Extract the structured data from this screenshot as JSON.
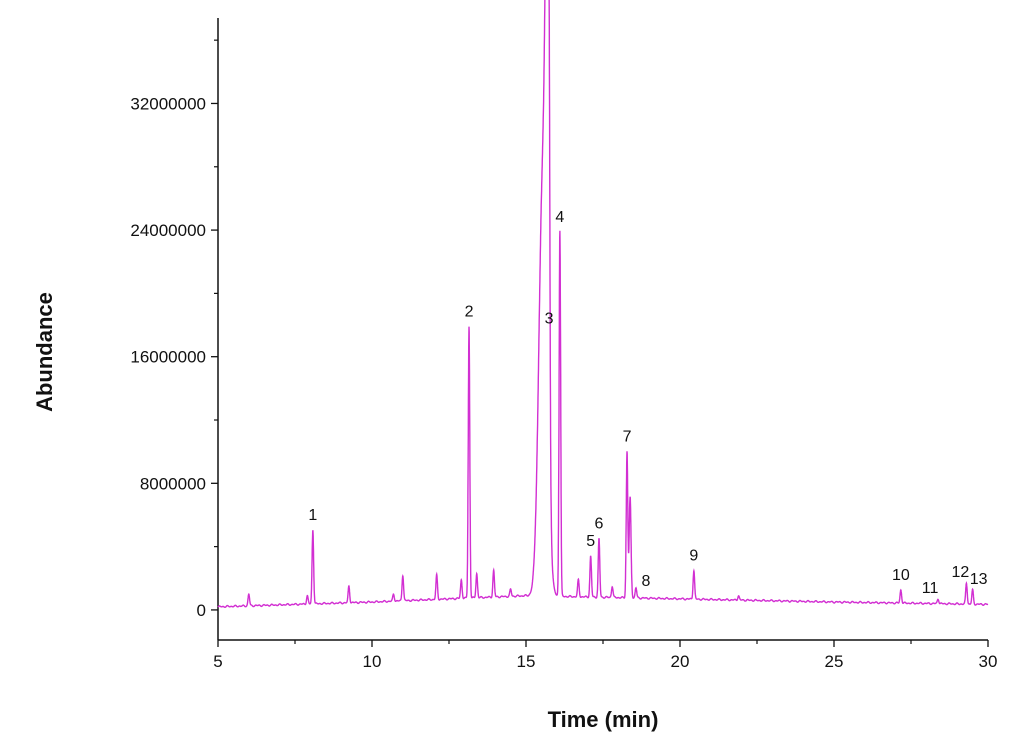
{
  "chart_data": {
    "type": "line",
    "title": "",
    "xlabel": "Time (min)",
    "ylabel": "Abundance",
    "xlim": [
      5,
      30
    ],
    "ylim": [
      -1900000,
      37400000
    ],
    "xticks": [
      5,
      10,
      15,
      20,
      25,
      30
    ],
    "yticks": [
      0,
      8000000,
      16000000,
      24000000,
      32000000
    ],
    "ytick_labels": [
      "0",
      "8000000",
      "16000000",
      "24000000",
      "32000000"
    ],
    "xtick_labels": [
      "5",
      "10",
      "15",
      "20",
      "25",
      "30"
    ],
    "grid": false,
    "line_color": "#d22fd2",
    "baseline": {
      "x": [
        5,
        10,
        15,
        20,
        25,
        30
      ],
      "y": [
        200000,
        500000,
        900000,
        700000,
        500000,
        350000
      ]
    },
    "labeled_peaks": [
      {
        "label": "1",
        "time": 8.08,
        "abundance": 5060000
      },
      {
        "label": "2",
        "time": 13.15,
        "abundance": 17900000
      },
      {
        "label": "3",
        "time": 15.75,
        "abundance": 17600000
      },
      {
        "label": "4",
        "time": 16.1,
        "abundance": 24000000
      },
      {
        "label": "5",
        "time": 17.1,
        "abundance": 3400000
      },
      {
        "label": "6",
        "time": 17.37,
        "abundance": 4500000
      },
      {
        "label": "7",
        "time": 18.28,
        "abundance": 10000000
      },
      {
        "label": "8",
        "time": 18.57,
        "abundance": 1400000
      },
      {
        "label": "9",
        "time": 20.45,
        "abundance": 2500000
      },
      {
        "label": "10",
        "time": 27.17,
        "abundance": 1260000
      },
      {
        "label": "11",
        "time": 28.38,
        "abundance": 700000
      },
      {
        "label": "12",
        "time": 29.3,
        "abundance": 1700000
      },
      {
        "label": "13",
        "time": 29.5,
        "abundance": 1260000
      }
    ],
    "other_peaks": [
      {
        "time": 15.55,
        "abundance": 27600000,
        "width": 0.13
      },
      {
        "time": 15.68,
        "abundance": 27000000,
        "width": 0.06
      },
      {
        "time": 18.38,
        "abundance": 7100000,
        "width": 0.03
      },
      {
        "time": 6.0,
        "abundance": 1000000
      },
      {
        "time": 7.9,
        "abundance": 900000
      },
      {
        "time": 9.25,
        "abundance": 1500000
      },
      {
        "time": 10.7,
        "abundance": 1000000
      },
      {
        "time": 11.0,
        "abundance": 2200000
      },
      {
        "time": 12.1,
        "abundance": 2200000
      },
      {
        "time": 12.9,
        "abundance": 1900000
      },
      {
        "time": 13.4,
        "abundance": 2300000
      },
      {
        "time": 13.95,
        "abundance": 2500000
      },
      {
        "time": 14.5,
        "abundance": 1300000
      },
      {
        "time": 16.7,
        "abundance": 1900000
      },
      {
        "time": 17.8,
        "abundance": 1500000
      },
      {
        "time": 21.9,
        "abundance": 900000
      }
    ]
  }
}
